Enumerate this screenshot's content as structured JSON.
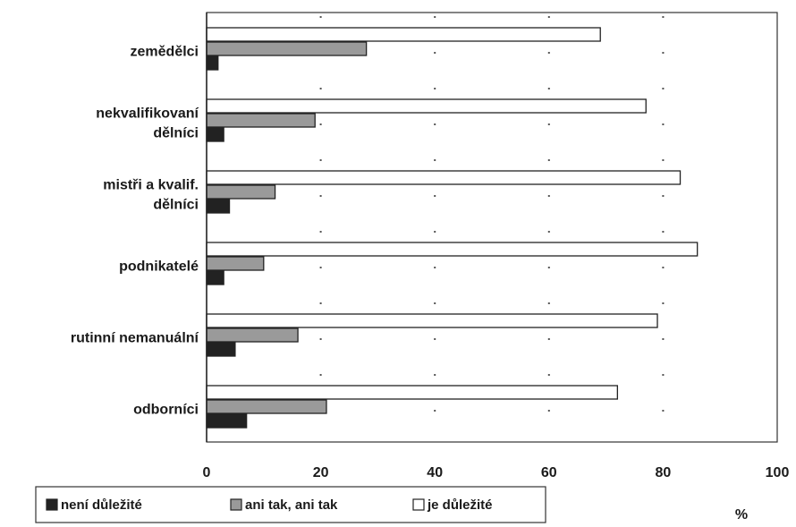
{
  "chart_data": {
    "type": "bar",
    "orientation": "horizontal",
    "categories": [
      [
        "zemědělci"
      ],
      [
        "nekvalifikovaní",
        "dělníci"
      ],
      [
        "mistři a kvalif.",
        "dělníci"
      ],
      [
        "podnikatelé"
      ],
      [
        "rutinní nemanuální"
      ],
      [
        "odborníci"
      ]
    ],
    "series": [
      {
        "name": "je důležité",
        "color": "#ffffff",
        "values": [
          69,
          77,
          83,
          86,
          79,
          72
        ]
      },
      {
        "name": "ani tak, ani tak",
        "color": "#9a9a9a",
        "values": [
          28,
          19,
          12,
          10,
          16,
          21
        ]
      },
      {
        "name": "není důležité",
        "color": "#222222",
        "values": [
          2,
          3,
          4,
          3,
          5,
          7
        ]
      }
    ],
    "legend_order": [
      "není důležité",
      "ani tak, ani tak",
      "je důležité"
    ],
    "xlim": [
      0,
      100
    ],
    "xticks": [
      0,
      20,
      40,
      60,
      80,
      100
    ],
    "xunit": "%",
    "grid": "dotted vertical",
    "legend_position": "bottom"
  }
}
